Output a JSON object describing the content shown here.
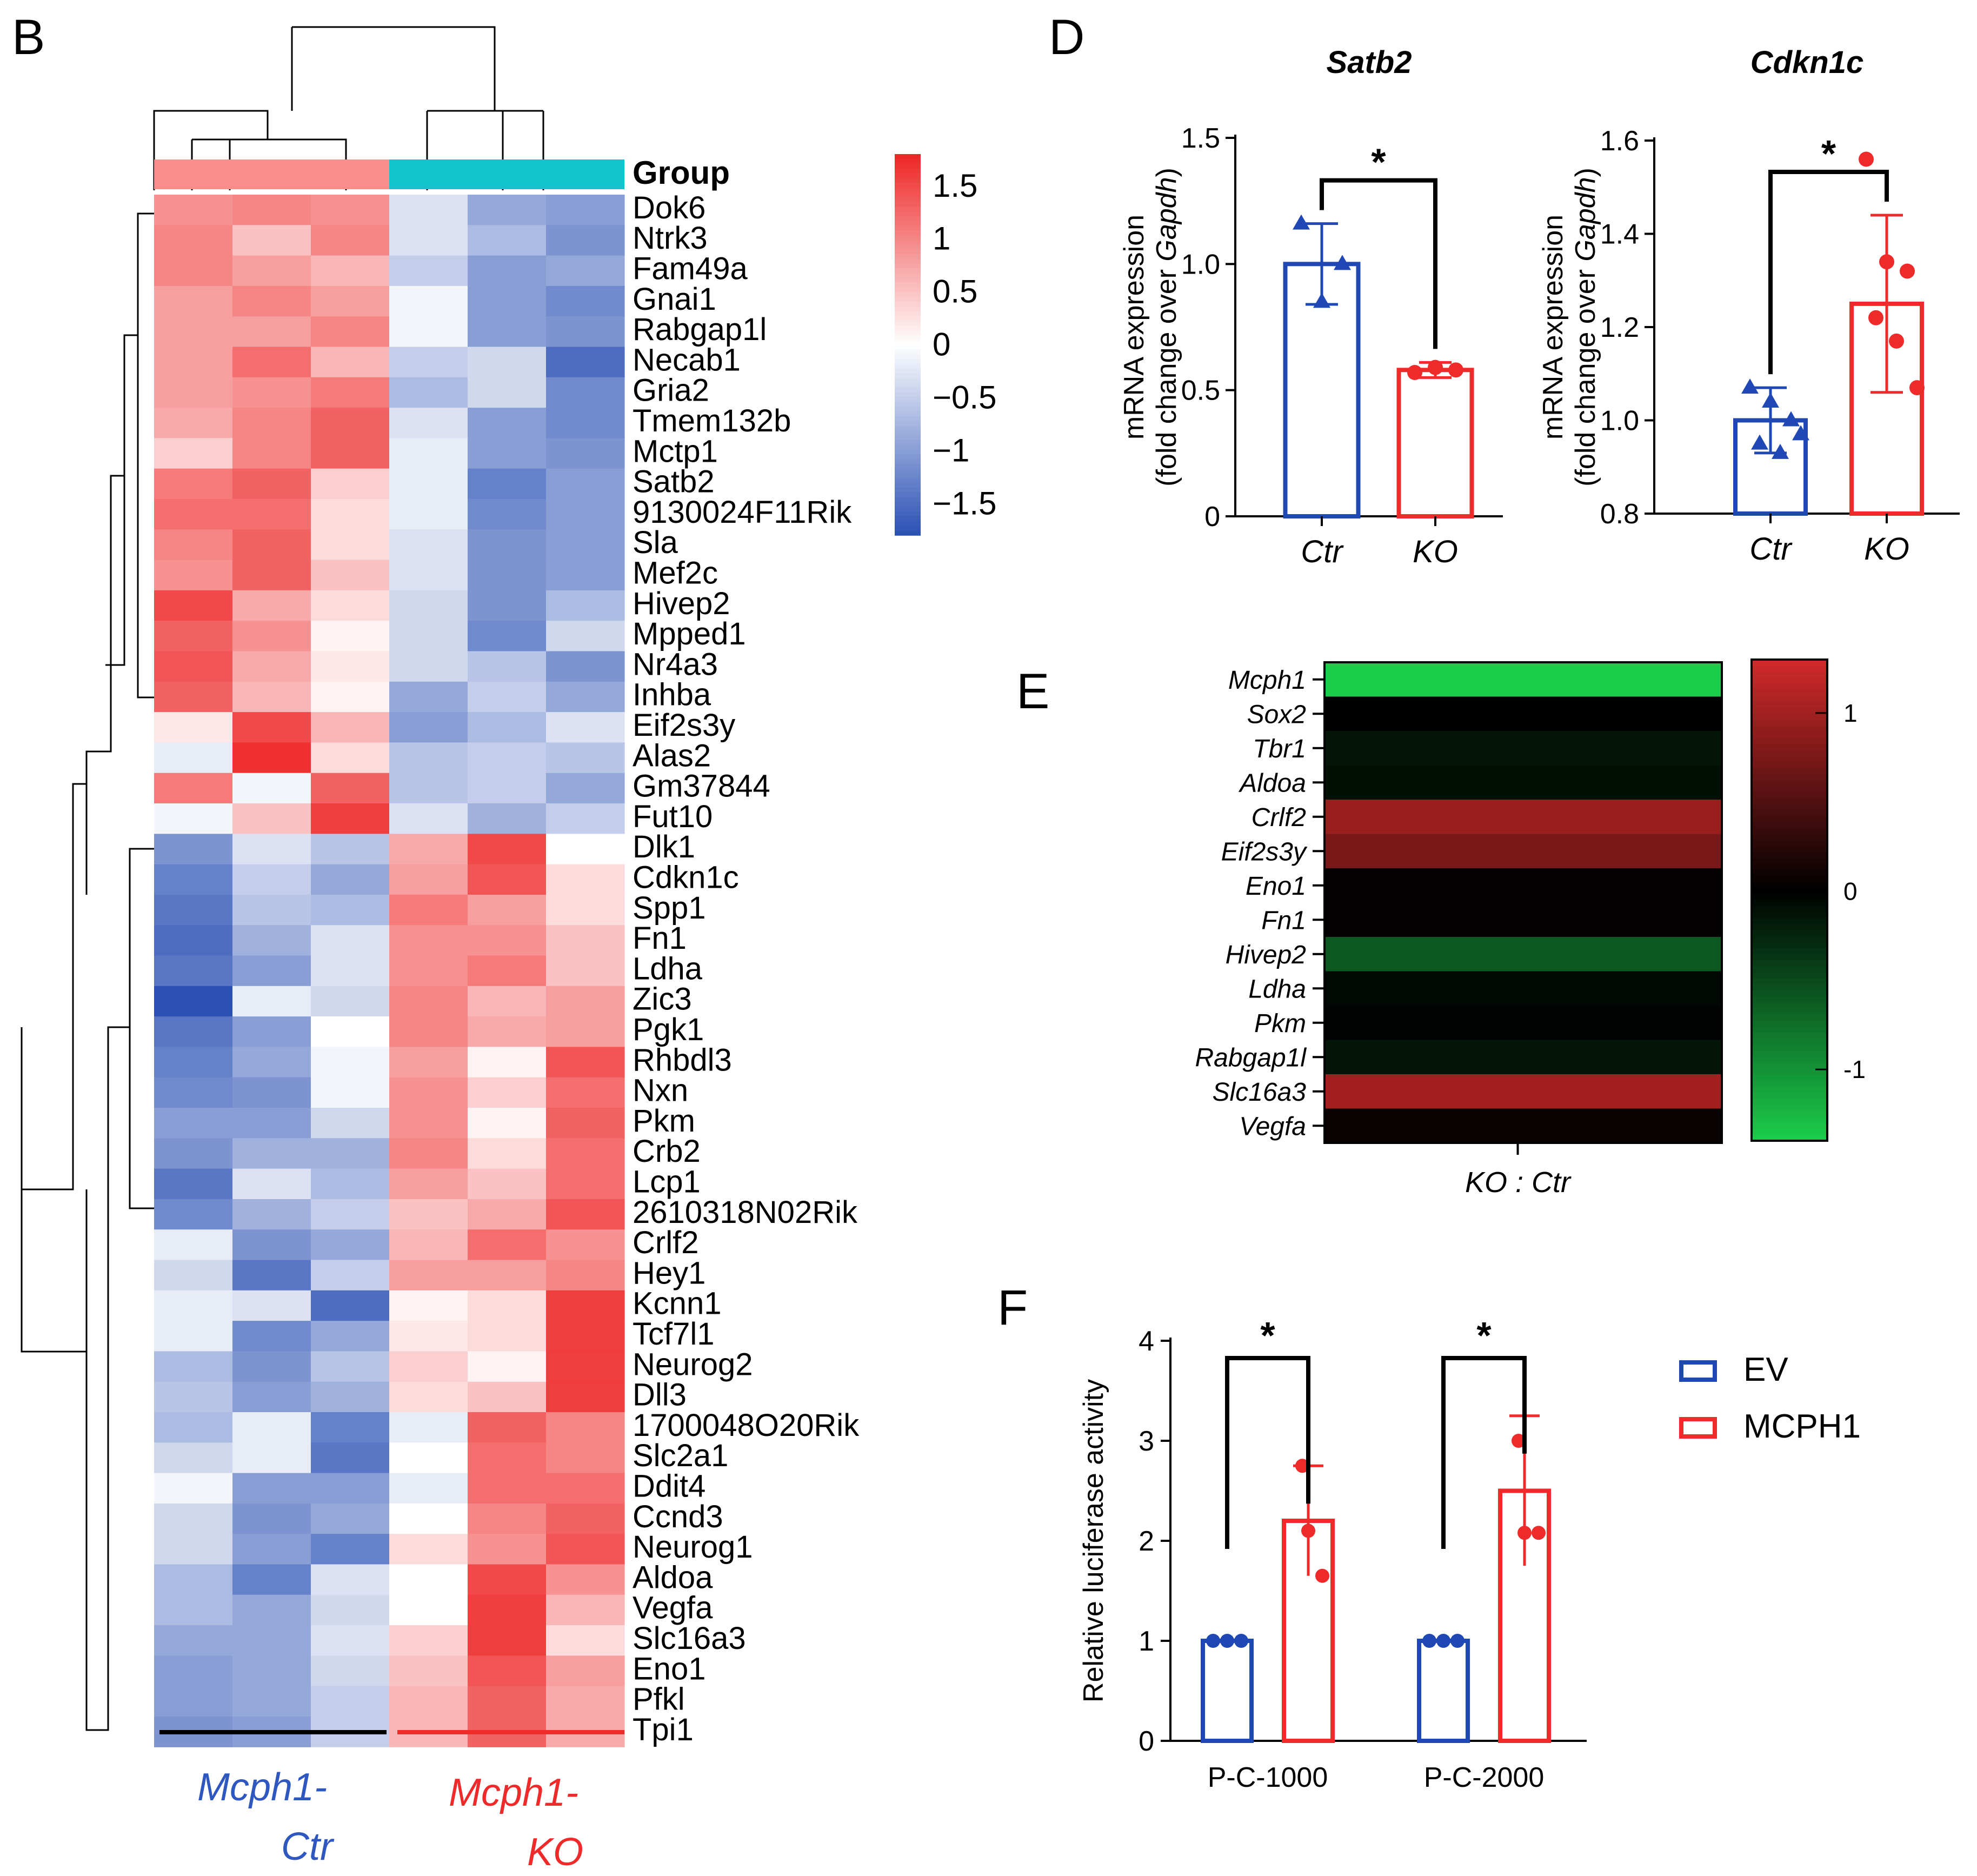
{
  "panels": {
    "B": "B",
    "D": "D",
    "E": "E",
    "F": "F"
  },
  "chart_data": [
    {
      "id": "B",
      "type": "heatmap",
      "annotation_label": "Group",
      "genes": [
        "Dok6",
        "Ntrk3",
        "Fam49a",
        "Gnai1",
        "Rabgap1l",
        "Necab1",
        "Gria2",
        "Tmem132b",
        "Mctp1",
        "Satb2",
        "9130024F11Rik",
        "Sla",
        "Mef2c",
        "Hivep2",
        "Mpped1",
        "Nr4a3",
        "Inhba",
        "Eif2s3y",
        "Alas2",
        "Gm37844",
        "Fut10",
        "Dlk1",
        "Cdkn1c",
        "Spp1",
        "Fn1",
        "Ldha",
        "Zic3",
        "Pgk1",
        "Rhbdl3",
        "Nxn",
        "Pkm",
        "Crb2",
        "Lcp1",
        "2610318N02Rik",
        "Crlf2",
        "Hey1",
        "Kcnn1",
        "Tcf7l1",
        "Neurog2",
        "Dll3",
        "1700048O20Rik",
        "Slc2a1",
        "Ddit4",
        "Ccnd3",
        "Neurog1",
        "Aldoa",
        "Vegfa",
        "Slc16a3",
        "Eno1",
        "Pfkl",
        "Tpi1"
      ],
      "values": [
        [
          0.9,
          1.0,
          0.9,
          -0.3,
          -0.9,
          -1.0
        ],
        [
          1.0,
          0.5,
          1.0,
          -0.3,
          -0.7,
          -1.1
        ],
        [
          1.0,
          0.8,
          0.6,
          -0.5,
          -1.0,
          -0.9
        ],
        [
          0.8,
          1.0,
          0.8,
          -0.1,
          -1.0,
          -1.2
        ],
        [
          0.8,
          0.8,
          1.0,
          -0.1,
          -1.0,
          -1.1
        ],
        [
          0.8,
          1.2,
          0.6,
          -0.5,
          -0.4,
          -1.5
        ],
        [
          0.8,
          0.9,
          1.1,
          -0.7,
          -0.4,
          -1.2
        ],
        [
          0.7,
          1.0,
          1.3,
          -0.3,
          -1.0,
          -1.2
        ],
        [
          0.4,
          1.0,
          1.3,
          -0.2,
          -1.0,
          -1.1
        ],
        [
          1.1,
          1.3,
          0.4,
          -0.2,
          -1.3,
          -1.0
        ],
        [
          1.2,
          1.2,
          0.3,
          -0.2,
          -1.2,
          -1.0
        ],
        [
          1.0,
          1.3,
          0.3,
          -0.3,
          -1.1,
          -1.0
        ],
        [
          0.9,
          1.3,
          0.5,
          -0.3,
          -1.1,
          -1.0
        ],
        [
          1.5,
          0.7,
          0.3,
          -0.4,
          -1.1,
          -0.7
        ],
        [
          1.3,
          0.9,
          0.1,
          -0.4,
          -1.2,
          -0.4
        ],
        [
          1.4,
          0.7,
          0.2,
          -0.4,
          -0.6,
          -1.1
        ],
        [
          1.3,
          0.6,
          0.1,
          -0.9,
          -0.5,
          -0.9
        ],
        [
          0.2,
          1.5,
          0.6,
          -1.0,
          -0.7,
          -0.3
        ],
        [
          -0.2,
          1.7,
          0.3,
          -0.6,
          -0.5,
          -0.6
        ],
        [
          1.1,
          -0.1,
          1.3,
          -0.6,
          -0.5,
          -0.9
        ],
        [
          -0.1,
          0.5,
          1.6,
          -0.3,
          -0.8,
          -0.5
        ],
        [
          -1.1,
          -0.3,
          -0.6,
          0.7,
          1.5,
          0.0
        ],
        [
          -1.3,
          -0.5,
          -0.9,
          0.8,
          1.4,
          0.3
        ],
        [
          -1.4,
          -0.6,
          -0.7,
          1.1,
          0.8,
          0.3
        ],
        [
          -1.5,
          -0.8,
          -0.3,
          0.9,
          0.9,
          0.5
        ],
        [
          -1.4,
          -1.0,
          -0.3,
          0.9,
          1.1,
          0.5
        ],
        [
          -1.8,
          -0.2,
          -0.4,
          1.0,
          0.6,
          0.8
        ],
        [
          -1.4,
          -1.0,
          0.0,
          1.0,
          0.7,
          0.8
        ],
        [
          -1.3,
          -0.9,
          -0.1,
          0.8,
          0.1,
          1.4
        ],
        [
          -1.2,
          -1.1,
          -0.1,
          0.9,
          0.4,
          1.2
        ],
        [
          -1.0,
          -1.0,
          -0.4,
          0.9,
          0.1,
          1.3
        ],
        [
          -1.1,
          -0.8,
          -0.8,
          1.0,
          0.3,
          1.2
        ],
        [
          -1.4,
          -0.3,
          -0.7,
          0.8,
          0.5,
          1.2
        ],
        [
          -1.2,
          -0.8,
          -0.5,
          0.5,
          0.7,
          1.4
        ],
        [
          -0.2,
          -1.1,
          -0.9,
          0.6,
          1.2,
          0.9
        ],
        [
          -0.4,
          -1.4,
          -0.5,
          0.8,
          0.8,
          1.0
        ],
        [
          -0.2,
          -0.3,
          -1.5,
          0.1,
          0.3,
          1.6
        ],
        [
          -0.2,
          -1.2,
          -0.9,
          0.2,
          0.3,
          1.6
        ],
        [
          -0.7,
          -1.1,
          -0.6,
          0.4,
          0.1,
          1.6
        ],
        [
          -0.6,
          -1.0,
          -0.8,
          0.3,
          0.5,
          1.6
        ],
        [
          -0.7,
          -0.2,
          -1.3,
          -0.2,
          1.3,
          1.0
        ],
        [
          -0.4,
          -0.2,
          -1.4,
          0.0,
          1.2,
          1.0
        ],
        [
          -0.1,
          -1.0,
          -1.0,
          -0.2,
          1.2,
          1.2
        ],
        [
          -0.4,
          -1.1,
          -0.9,
          0.0,
          1.0,
          1.3
        ],
        [
          -0.4,
          -1.0,
          -1.3,
          0.3,
          0.9,
          1.4
        ],
        [
          -0.7,
          -1.3,
          -0.3,
          0.0,
          1.5,
          0.9
        ],
        [
          -0.7,
          -0.9,
          -0.4,
          0.0,
          1.6,
          0.6
        ],
        [
          -0.9,
          -0.9,
          -0.3,
          0.4,
          1.6,
          0.3
        ],
        [
          -1.0,
          -0.9,
          -0.4,
          0.5,
          1.4,
          0.8
        ],
        [
          -1.0,
          -0.9,
          -0.5,
          0.6,
          1.3,
          0.7
        ],
        [
          -1.1,
          -1.0,
          -0.5,
          0.6,
          1.3,
          0.7
        ]
      ],
      "groups": [
        {
          "name": "Mcph1-Ctr",
          "label_line1": "Mcph1-",
          "label_line2": "Ctr",
          "color": "#2e57c0",
          "band_color": "#fa8c8c"
        },
        {
          "name": "Mcph1-KO",
          "label_line1": "Mcph1-",
          "label_line2": "KO",
          "color": "#ee2a2a",
          "band_color": "#12c4cc"
        }
      ],
      "colorbar": {
        "range": [
          -1.8,
          1.8
        ],
        "ticks": [
          "1.5",
          "1",
          "0.5",
          "0",
          "−0.5",
          "−1",
          "−1.5"
        ],
        "tick_values": [
          1.5,
          1,
          0.5,
          0,
          -0.5,
          -1,
          -1.5
        ],
        "low_color": "#2a50b4",
        "mid_color": "#ffffff",
        "high_color": "#ee2525"
      }
    },
    {
      "id": "D1",
      "type": "bar",
      "title": "Satb2",
      "ylabel_line1": "mRNA expression",
      "ylabel_line2_prefix": "(fold change over ",
      "ylabel_line2_italic": "Gapdh",
      "ylabel_line2_suffix": ")",
      "categories": [
        "Ctr",
        "KO"
      ],
      "values": [
        1.0,
        0.58
      ],
      "errors": [
        0.16,
        0.03
      ],
      "points": [
        [
          1.16,
          0.85,
          1.0
        ],
        [
          0.57,
          0.59,
          0.58
        ]
      ],
      "ylim": [
        0,
        1.5
      ],
      "yticks": [
        "0",
        "0.5",
        "1.0",
        "1.5"
      ],
      "ytick_values": [
        0,
        0.5,
        1.0,
        1.5
      ],
      "significance": "*",
      "colors": [
        "#2048b4",
        "#ee2a2a"
      ]
    },
    {
      "id": "D2",
      "type": "bar",
      "title": "Cdkn1c",
      "ylabel_line1": "mRNA expression",
      "ylabel_line2_prefix": "(fold change over ",
      "ylabel_line2_italic": "Gapdh",
      "ylabel_line2_suffix": ")",
      "categories": [
        "Ctr",
        "KO"
      ],
      "values": [
        1.0,
        1.25
      ],
      "errors": [
        0.07,
        0.19
      ],
      "points": [
        [
          1.07,
          1.04,
          1.0,
          0.95,
          0.93,
          0.97
        ],
        [
          1.56,
          1.34,
          1.32,
          1.22,
          1.17,
          1.07
        ]
      ],
      "ylim": [
        0.8,
        1.6
      ],
      "yticks": [
        "0.8",
        "1.0",
        "1.2",
        "1.4",
        "1.6"
      ],
      "ytick_values": [
        0.8,
        1.0,
        1.2,
        1.4,
        1.6
      ],
      "significance": "*",
      "colors": [
        "#2048b4",
        "#ee2a2a"
      ]
    },
    {
      "id": "E",
      "type": "heatmap",
      "genes": [
        "Mcph1",
        "Sox2",
        "Tbr1",
        "Aldoa",
        "Crlf2",
        "Eif2s3y",
        "Eno1",
        "Fn1",
        "Hivep2",
        "Ldha",
        "Pkm",
        "Rabgap1l",
        "Slc16a3",
        "Vegfa"
      ],
      "values": [
        -1.4,
        0.0,
        -0.15,
        -0.1,
        0.95,
        0.75,
        0.02,
        0.02,
        -0.6,
        -0.05,
        -0.02,
        -0.15,
        1.0,
        0.05
      ],
      "xlabel": "KO : Ctr",
      "colorbar": {
        "range": [
          -1.4,
          1.3
        ],
        "ticks": [
          "1",
          "0",
          "-1"
        ],
        "tick_values": [
          1,
          0,
          -1
        ],
        "low_color": "#1bcd4b",
        "mid_color": "#000000",
        "high_color": "#d22a2a"
      }
    },
    {
      "id": "F",
      "type": "bar",
      "ylabel": "Relative  luciferase  activity",
      "categories": [
        "P-C-1000",
        "P-C-2000"
      ],
      "series": [
        {
          "name": "EV",
          "values": [
            1.0,
            1.0
          ],
          "errors": [
            0,
            0
          ],
          "points": [
            [
              1.0,
              1.0,
              1.0
            ],
            [
              1.0,
              1.0,
              1.0
            ]
          ],
          "color": "#2048b4"
        },
        {
          "name": "MCPH1",
          "values": [
            2.2,
            2.5
          ],
          "errors": [
            0.55,
            0.75
          ],
          "points": [
            [
              2.75,
              2.1,
              1.65
            ],
            [
              3.0,
              2.08,
              2.08
            ]
          ],
          "color": "#ee2a2a"
        }
      ],
      "ylim": [
        0,
        4
      ],
      "yticks": [
        "0",
        "1",
        "2",
        "3",
        "4"
      ],
      "ytick_values": [
        0,
        1,
        2,
        3,
        4
      ],
      "significance": [
        "*",
        "*"
      ]
    }
  ]
}
